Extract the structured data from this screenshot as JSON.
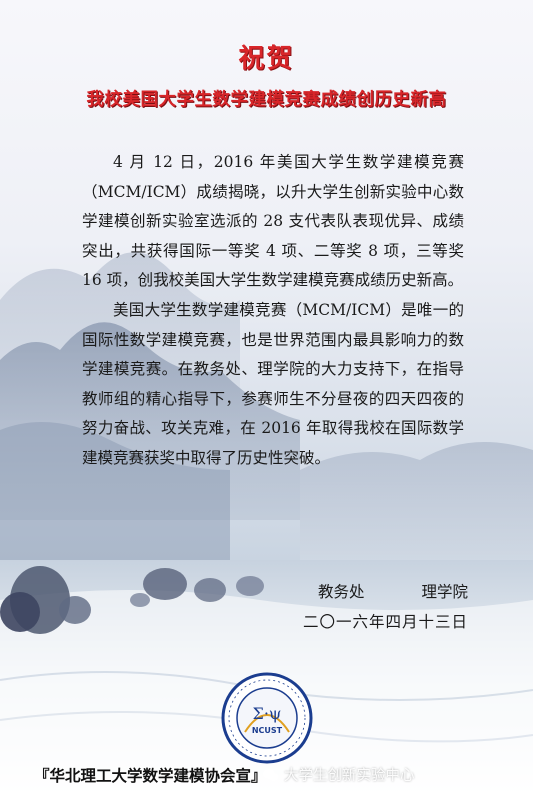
{
  "title": "祝贺",
  "subtitle": "我校美国大学生数学建模竞赛成绩创历史新高",
  "paragraphs": [
    "4 月 12 日，2016 年美国大学生数学建模竞赛（MCM/ICM）成绩揭晓，以升大学生创新实验中心数学建模创新实验室选派的 28 支代表队表现优异、成绩突出，共获得国际一等奖 4 项、二等奖 8 项，三等奖 16 项，创我校美国大学生数学建模竞赛成绩历史新高。",
    "美国大学生数学建模竞赛（MCM/ICM）是唯一的国际性数学建模竞赛，也是世界范围内最具影响力的数学建模竞赛。在教务处、理学院的大力支持下，在指导教师组的精心指导下，参赛师生不分昼夜的四天四夜的努力奋战、攻关克难，在 2016 年取得我校在国际数学建模竞赛获奖中取得了历史性突破。"
  ],
  "signature": {
    "org1": "教务处",
    "org2": "理学院",
    "date": "二〇一六年四月十三日"
  },
  "logo": {
    "symbol": "Σ·ψ",
    "abbr": "NCUST"
  },
  "footer": {
    "text": "『华北理工大学数学建模协会宣』",
    "watermark": "大学生创新实验中心"
  },
  "colors": {
    "title_red": "#d8262a",
    "logo_blue": "#1b3d8f"
  }
}
